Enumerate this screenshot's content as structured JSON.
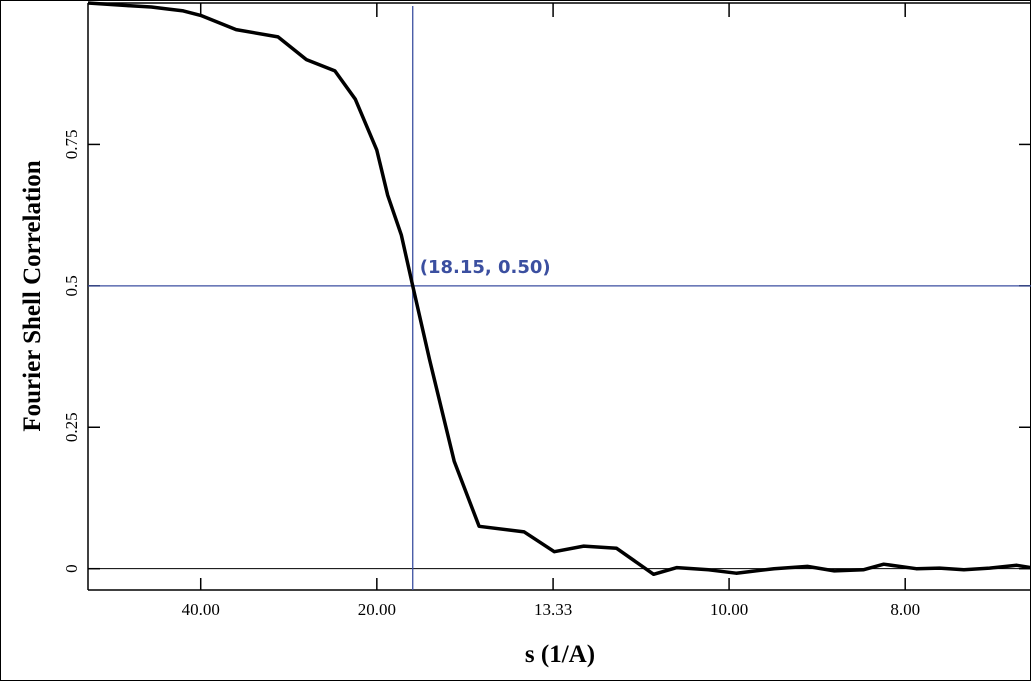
{
  "chart_data": {
    "type": "line",
    "title": "",
    "xlabel": "s (1/A)",
    "ylabel": "Fourier Shell Correlation",
    "x_scale": "reciprocal",
    "xlim": [
      111.1,
      7.0
    ],
    "ylim": [
      -0.02,
      1.0
    ],
    "grid": false,
    "x_ticks": [
      {
        "value": 40.0,
        "label": "40.00"
      },
      {
        "value": 20.0,
        "label": "20.00"
      },
      {
        "value": 13.33,
        "label": "13.33"
      },
      {
        "value": 10.0,
        "label": "10.00"
      },
      {
        "value": 8.0,
        "label": "8.00"
      }
    ],
    "y_ticks": [
      {
        "value": 0,
        "label": "0"
      },
      {
        "value": 0.25,
        "label": "0.25"
      },
      {
        "value": 0.5,
        "label": "0.5"
      },
      {
        "value": 0.75,
        "label": "0.75"
      }
    ],
    "series": [
      {
        "color": "#000000",
        "points": [
          [
            111.1,
            1.0
          ],
          [
            66.7,
            0.995
          ],
          [
            55.6,
            0.993
          ],
          [
            50.0,
            0.99
          ],
          [
            44.4,
            0.986
          ],
          [
            40.0,
            0.978
          ],
          [
            33.3,
            0.953
          ],
          [
            27.8,
            0.94
          ],
          [
            25.0,
            0.9
          ],
          [
            22.7,
            0.88
          ],
          [
            21.3,
            0.83
          ],
          [
            20.0,
            0.74
          ],
          [
            19.4,
            0.66
          ],
          [
            18.7,
            0.59
          ],
          [
            18.15,
            0.5
          ],
          [
            17.4,
            0.37
          ],
          [
            16.4,
            0.19
          ],
          [
            15.5,
            0.075
          ],
          [
            14.1,
            0.065
          ],
          [
            13.3,
            0.03
          ],
          [
            12.6,
            0.04
          ],
          [
            11.9,
            0.036
          ],
          [
            11.2,
            -0.01
          ],
          [
            10.8,
            0.002
          ],
          [
            10.3,
            -0.002
          ],
          [
            9.9,
            -0.008
          ],
          [
            9.4,
            0.0
          ],
          [
            9.0,
            0.004
          ],
          [
            8.7,
            -0.004
          ],
          [
            8.4,
            -0.002
          ],
          [
            8.2,
            0.008
          ],
          [
            7.9,
            0.0
          ],
          [
            7.7,
            0.001
          ],
          [
            7.5,
            -0.002
          ],
          [
            7.3,
            0.001
          ],
          [
            7.1,
            0.006
          ],
          [
            7.0,
            0.002
          ]
        ]
      }
    ],
    "reference": {
      "x": 18.15,
      "y": 0.5,
      "color": "#3b4fa0",
      "label": "(18.15, 0.50)"
    }
  }
}
